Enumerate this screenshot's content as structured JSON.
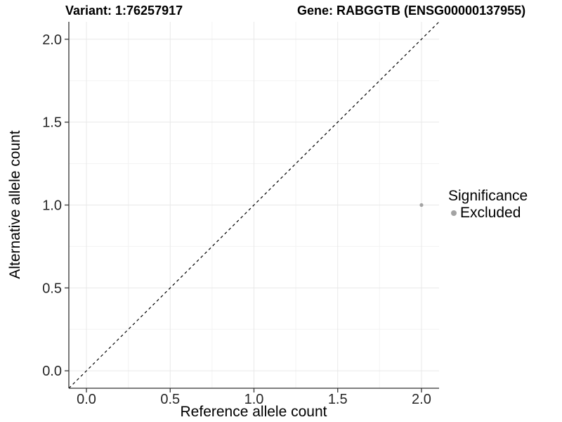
{
  "figure": {
    "background": "#ffffff"
  },
  "chart_data": {
    "type": "scatter",
    "titles": {
      "variant": "Variant: 1:76257917",
      "gene": "Gene: RABGGTB (ENSG00000137955)"
    },
    "xlabel": "Reference allele count",
    "ylabel": "Alternative allele count",
    "xlim": [
      -0.105,
      2.105
    ],
    "ylim": [
      -0.105,
      2.105
    ],
    "xticks": {
      "values": [
        0,
        0.5,
        1,
        1.5,
        2
      ],
      "labels": [
        "0.0",
        "0.5",
        "1.0",
        "1.5",
        "2.0"
      ]
    },
    "yticks": {
      "values": [
        0,
        0.5,
        1,
        1.5,
        2
      ],
      "labels": [
        "0.0",
        "0.5",
        "1.0",
        "1.5",
        "2.0"
      ]
    },
    "minor_gridlines": [
      0.25,
      0.75,
      1.25,
      1.75
    ],
    "grid": {
      "on": true,
      "major_color": "#e8e8e8",
      "minor_color": "#f3f3f3"
    },
    "identity_line": {
      "slope": 1,
      "intercept": 0,
      "style": "dashed",
      "color": "#000000"
    },
    "series": [
      {
        "name": "Excluded",
        "color": "#a3a3a3",
        "points": [
          {
            "x": 2.0,
            "y": 1.0
          }
        ]
      }
    ],
    "legend": {
      "title": "Significance",
      "position": "right",
      "items": [
        {
          "label": "Excluded",
          "color": "#a3a3a3"
        }
      ]
    },
    "axis_color": "#333333",
    "tick_label_color": "#262626"
  }
}
